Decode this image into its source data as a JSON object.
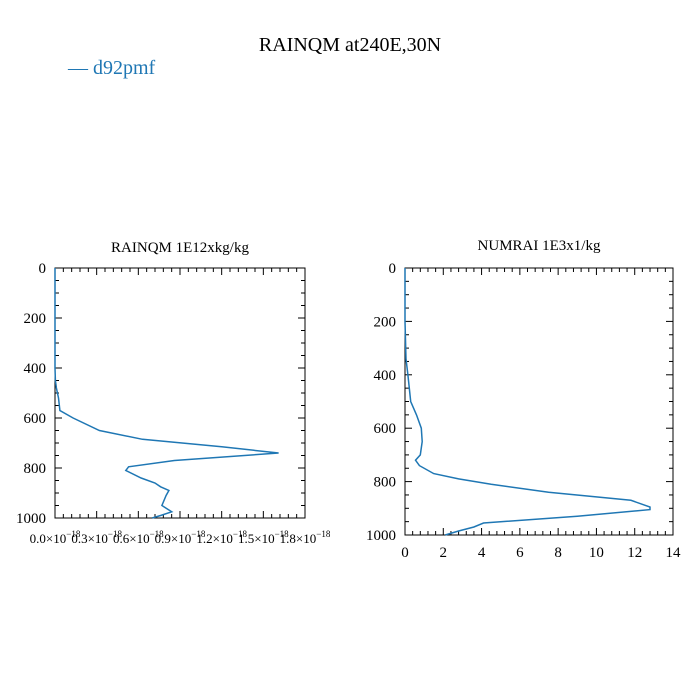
{
  "figure": {
    "title": "RAINQM at240E,30N",
    "legend_label": "d92pmf",
    "series_color": "#1f77b4"
  },
  "chart_data": [
    {
      "type": "line",
      "title": "RAINQM  1E12xkg/kg",
      "xlabel": "",
      "ylabel": "",
      "xlim": [
        0,
        1.8e-18
      ],
      "ylim": [
        1000,
        0
      ],
      "grid": false,
      "y_inverted": true,
      "x_tick_labels": [
        "0.0×10$^{-18}$",
        "0.3×10$^{-18}$",
        "0.6×10$^{-18}$",
        "0.9×10$^{-18}$",
        "1.2×10$^{-18}$",
        "1.5×10$^{-18}$",
        "1.8×10$^{-18}$"
      ],
      "x_tick_parts": [
        {
          "base": "0.0×10",
          "exp": "−18"
        },
        {
          "base": "0.3×10",
          "exp": "−18"
        },
        {
          "base": "0.6×10",
          "exp": "−18"
        },
        {
          "base": "0.9×10",
          "exp": "−18"
        },
        {
          "base": "1.2×10",
          "exp": "−18"
        },
        {
          "base": "1.5×10",
          "exp": "−18"
        },
        {
          "base": "1.8×10",
          "exp": "−18"
        }
      ],
      "x_ticks": [
        0,
        3e-19,
        6e-19,
        9e-19,
        1.2e-18,
        1.5e-18,
        1.8e-18
      ],
      "y_ticks": [
        0,
        200,
        400,
        600,
        800,
        1000
      ],
      "y_tick_labels": [
        "0",
        "200",
        "400",
        "600",
        "800",
        "1000"
      ],
      "series": [
        {
          "name": "d92pmf",
          "x": [
            0,
            0,
            0,
            0,
            3e-21,
            1e-20,
            2.5e-20,
            3.5e-20,
            1.3e-19,
            3.2e-19,
            6.3e-19,
            1.2e-18,
            1.61e-18,
            8.6e-19,
            5.3e-19,
            5.1e-19,
            6.2e-19,
            7.2e-19,
            7.6e-19,
            8.2e-19,
            8e-19,
            7.7e-19,
            8.4e-19,
            7.6e-19,
            7e-19
          ],
          "y": [
            0,
            200,
            300,
            400,
            450,
            480,
            520,
            570,
            600,
            650,
            685,
            715,
            740,
            770,
            795,
            810,
            840,
            860,
            875,
            890,
            910,
            950,
            975,
            990,
            1000
          ]
        }
      ]
    },
    {
      "type": "line",
      "title": "NUMRAI  1E3x1/kg",
      "xlabel": "",
      "ylabel": "",
      "xlim": [
        0,
        14
      ],
      "ylim": [
        1000,
        0
      ],
      "grid": false,
      "y_inverted": true,
      "x_ticks": [
        0,
        2,
        4,
        6,
        8,
        10,
        12,
        14
      ],
      "x_tick_labels": [
        "0",
        "2",
        "4",
        "6",
        "8",
        "10",
        "12",
        "14"
      ],
      "y_ticks": [
        0,
        200,
        400,
        600,
        800,
        1000
      ],
      "y_tick_labels": [
        "0",
        "200",
        "400",
        "600",
        "800",
        "1000"
      ],
      "series": [
        {
          "name": "d92pmf",
          "x": [
            0,
            0,
            0.05,
            0.15,
            0.3,
            0.6,
            0.85,
            0.9,
            0.8,
            0.55,
            0.75,
            1.5,
            2.8,
            4.5,
            7.5,
            11.8,
            12.8,
            12.8,
            9,
            4.1,
            3.6,
            2.8,
            2.1
          ],
          "y": [
            0,
            200,
            340,
            400,
            500,
            550,
            600,
            650,
            700,
            720,
            740,
            770,
            790,
            810,
            840,
            870,
            895,
            905,
            930,
            955,
            970,
            985,
            1000
          ]
        }
      ]
    }
  ]
}
